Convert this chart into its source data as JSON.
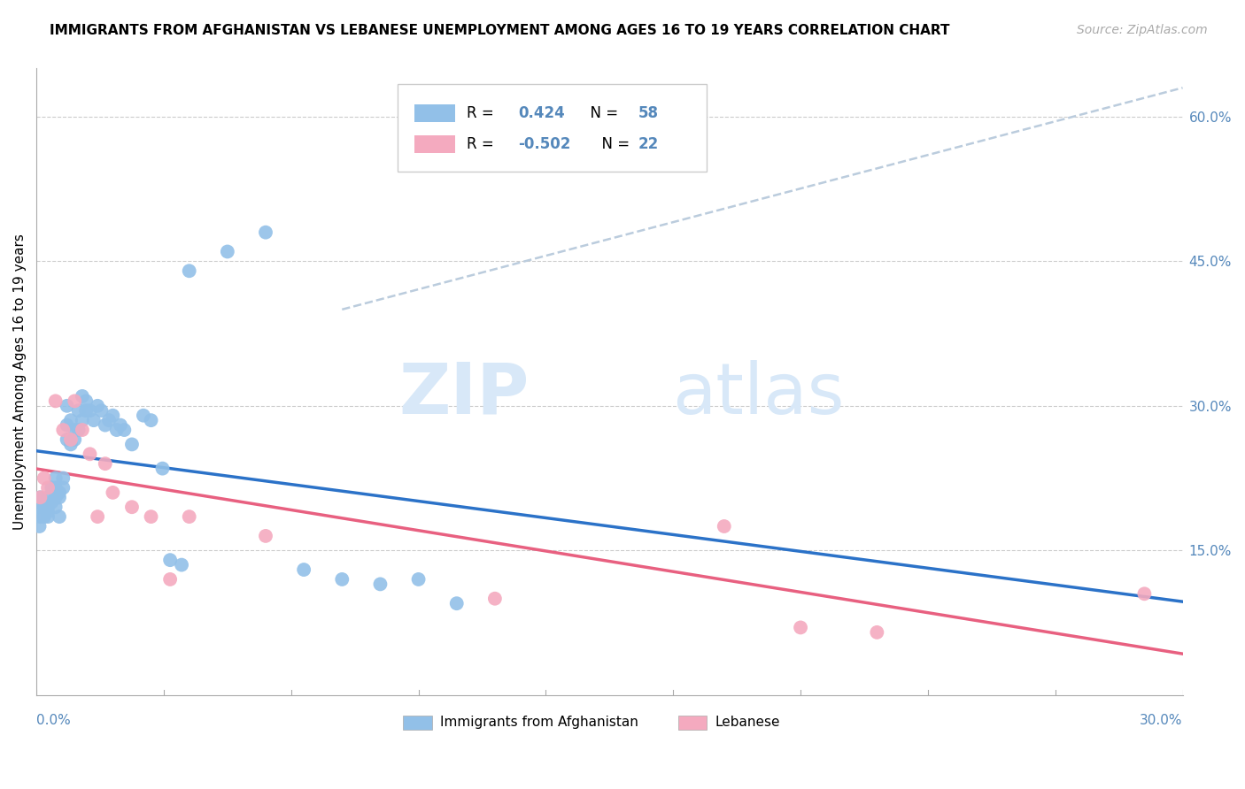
{
  "title": "IMMIGRANTS FROM AFGHANISTAN VS LEBANESE UNEMPLOYMENT AMONG AGES 16 TO 19 YEARS CORRELATION CHART",
  "source": "Source: ZipAtlas.com",
  "ylabel": "Unemployment Among Ages 16 to 19 years",
  "xlim": [
    0.0,
    0.3
  ],
  "ylim": [
    0.0,
    0.65
  ],
  "blue_scatter_color": "#92C0E8",
  "pink_scatter_color": "#F4AABF",
  "blue_line_color": "#2B72C8",
  "pink_line_color": "#E86080",
  "dashed_line_color": "#BBCCDD",
  "r_afg": "0.424",
  "n_afg": "58",
  "r_leb": "-0.502",
  "n_leb": "22",
  "watermark_color": "#D8E8F8",
  "legend_border_color": "#CCCCCC",
  "grid_color": "#CCCCCC",
  "axis_label_color": "#5588BB",
  "right_ytick_labels": [
    "15.0%",
    "30.0%",
    "45.0%",
    "60.0%"
  ],
  "right_ytick_values": [
    0.15,
    0.3,
    0.45,
    0.6
  ],
  "afg_x": [
    0.0006,
    0.0008,
    0.001,
    0.001,
    0.002,
    0.002,
    0.003,
    0.003,
    0.003,
    0.003,
    0.004,
    0.004,
    0.005,
    0.005,
    0.005,
    0.005,
    0.006,
    0.006,
    0.006,
    0.007,
    0.007,
    0.008,
    0.008,
    0.008,
    0.009,
    0.009,
    0.01,
    0.01,
    0.011,
    0.011,
    0.012,
    0.012,
    0.013,
    0.013,
    0.014,
    0.015,
    0.016,
    0.017,
    0.018,
    0.019,
    0.02,
    0.021,
    0.022,
    0.023,
    0.025,
    0.028,
    0.03,
    0.033,
    0.035,
    0.038,
    0.04,
    0.05,
    0.06,
    0.07,
    0.08,
    0.09,
    0.1,
    0.11
  ],
  "afg_y": [
    0.195,
    0.175,
    0.205,
    0.185,
    0.185,
    0.195,
    0.195,
    0.185,
    0.19,
    0.205,
    0.215,
    0.2,
    0.195,
    0.205,
    0.215,
    0.225,
    0.205,
    0.185,
    0.21,
    0.215,
    0.225,
    0.265,
    0.28,
    0.3,
    0.26,
    0.285,
    0.275,
    0.265,
    0.275,
    0.295,
    0.31,
    0.285,
    0.295,
    0.305,
    0.295,
    0.285,
    0.3,
    0.295,
    0.28,
    0.285,
    0.29,
    0.275,
    0.28,
    0.275,
    0.26,
    0.29,
    0.285,
    0.235,
    0.14,
    0.135,
    0.44,
    0.46,
    0.48,
    0.13,
    0.12,
    0.115,
    0.12,
    0.095
  ],
  "leb_x": [
    0.001,
    0.002,
    0.003,
    0.005,
    0.007,
    0.009,
    0.01,
    0.012,
    0.014,
    0.016,
    0.018,
    0.02,
    0.025,
    0.03,
    0.035,
    0.04,
    0.06,
    0.12,
    0.18,
    0.2,
    0.22,
    0.29
  ],
  "leb_y": [
    0.205,
    0.225,
    0.215,
    0.305,
    0.275,
    0.265,
    0.305,
    0.275,
    0.25,
    0.185,
    0.24,
    0.21,
    0.195,
    0.185,
    0.12,
    0.185,
    0.165,
    0.1,
    0.175,
    0.07,
    0.065,
    0.105
  ]
}
